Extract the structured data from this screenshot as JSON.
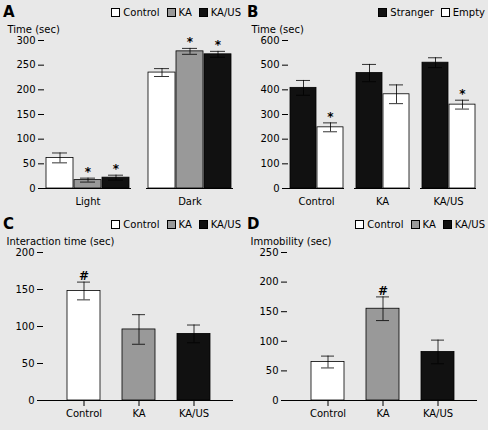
{
  "chart_data": [
    {
      "type": "bar",
      "title": "A",
      "ylabel": "Time (sec)",
      "ylim": [
        0,
        300
      ],
      "yticks": [
        0,
        50,
        100,
        150,
        200,
        250,
        300
      ],
      "categories": [
        "Light",
        "Dark"
      ],
      "legend": "upper right",
      "series": [
        {
          "name": "Control",
          "color": "#ffffff",
          "values": [
            62,
            235
          ],
          "errors": [
            10,
            8
          ],
          "annotations": [
            null,
            null
          ]
        },
        {
          "name": "KA",
          "color": "#999999",
          "values": [
            17,
            278
          ],
          "errors": [
            4,
            6
          ],
          "annotations": [
            "*",
            "*"
          ]
        },
        {
          "name": "KA/US",
          "color": "#111111",
          "values": [
            22,
            272
          ],
          "errors": [
            5,
            6
          ],
          "annotations": [
            "*",
            "*"
          ]
        }
      ]
    },
    {
      "type": "bar",
      "title": "B",
      "ylabel": "Time (sec)",
      "ylim": [
        0,
        600
      ],
      "yticks": [
        0,
        100,
        200,
        300,
        400,
        500,
        600
      ],
      "categories": [
        "Control",
        "KA",
        "KA/US"
      ],
      "legend": "upper right",
      "series": [
        {
          "name": "Stranger",
          "color": "#111111",
          "values": [
            408,
            468,
            510
          ],
          "errors": [
            30,
            35,
            20
          ],
          "annotations": [
            null,
            null,
            null
          ]
        },
        {
          "name": "Empty",
          "color": "#ffffff",
          "values": [
            248,
            382,
            340
          ],
          "errors": [
            18,
            38,
            18
          ],
          "annotations": [
            "*",
            null,
            "*"
          ]
        }
      ]
    },
    {
      "type": "bar",
      "title": "C",
      "ylabel": "Interaction time (sec)",
      "ylim": [
        0,
        200
      ],
      "yticks": [
        0,
        50,
        100,
        150,
        200
      ],
      "categories": [
        "Control",
        "KA",
        "KA/US"
      ],
      "values": [
        148,
        96,
        90
      ],
      "errors": [
        12,
        20,
        12
      ],
      "colors": [
        "#ffffff",
        "#999999",
        "#111111"
      ],
      "annotations": [
        "#",
        null,
        null
      ],
      "legend": "upper right"
    },
    {
      "type": "bar",
      "title": "D",
      "ylabel": "Immobility (sec)",
      "ylim": [
        0,
        250
      ],
      "yticks": [
        0,
        50,
        100,
        150,
        200,
        250
      ],
      "categories": [
        "Control",
        "KA",
        "KA/US"
      ],
      "values": [
        65,
        155,
        82
      ],
      "errors": [
        10,
        20,
        20
      ],
      "colors": [
        "#ffffff",
        "#999999",
        "#111111"
      ],
      "annotations": [
        null,
        "#",
        null
      ],
      "legend": "upper right"
    }
  ]
}
